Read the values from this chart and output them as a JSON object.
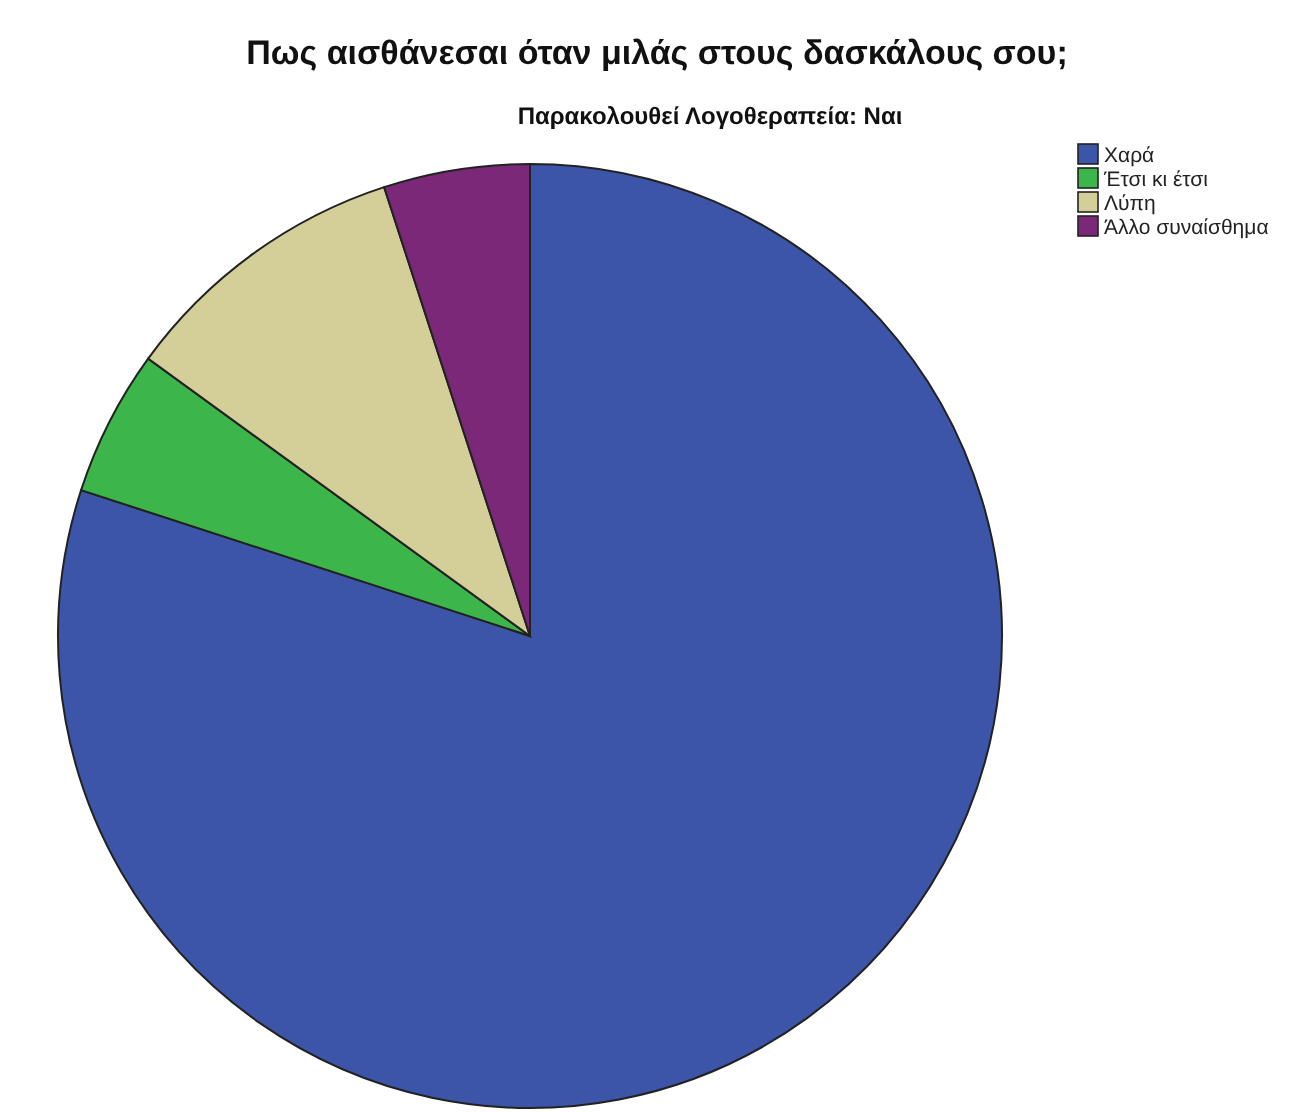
{
  "chart_data": {
    "type": "pie",
    "title": "Πως αισθάνεσαι όταν μιλάς στους δασκάλους σου;",
    "subtitle": "Παρακολουθεί Λογοθεραπεία: Ναι",
    "categories": [
      "Χαρά",
      "Έτσι κι έτσι",
      "Λύπη",
      "Άλλο συναίσθημα"
    ],
    "values": [
      80,
      5,
      10,
      5
    ],
    "colors": [
      "#3d55a8",
      "#3cb54a",
      "#d4cf99",
      "#7b2878"
    ],
    "legend": "top right"
  }
}
